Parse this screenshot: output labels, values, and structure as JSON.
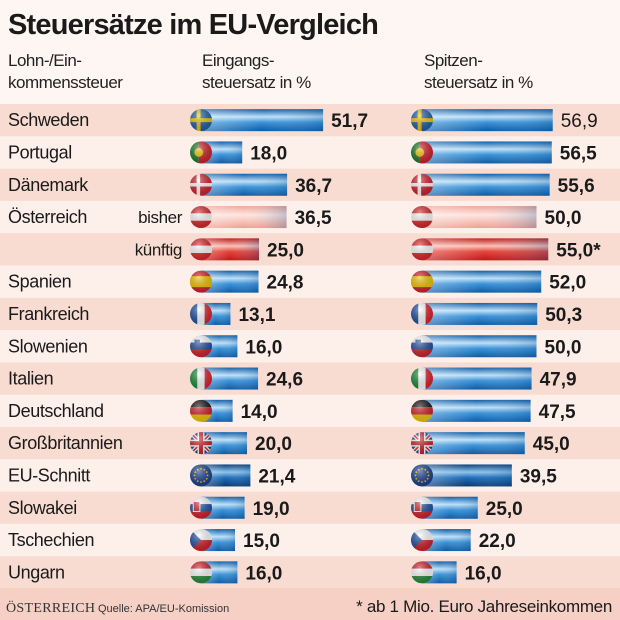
{
  "chart_data": {
    "type": "bar",
    "orientation": "horizontal",
    "title": "Steuersätze im EU-Vergleich",
    "category_header": "Lohn-/Einkommenssteuer",
    "category_header_lines": [
      "Lohn-/Ein-",
      "kommenssteuer"
    ],
    "series": [
      {
        "name": "Eingangssteuersatz in %",
        "name_lines": [
          "Eingangs-",
          "steuersatz in %"
        ],
        "color": "#1f78c8",
        "values": [
          51.7,
          18.0,
          36.7,
          36.5,
          25.0,
          24.8,
          13.1,
          16.0,
          24.6,
          14.0,
          20.0,
          21.4,
          19.0,
          15.0,
          16.0
        ],
        "labels": [
          "51,7",
          "18,0",
          "36,7",
          "36,5",
          "25,0",
          "24,8",
          "13,1",
          "16,0",
          "24,6",
          "14,0",
          "20,0",
          "21,4",
          "19,0",
          "15,0",
          "16,0"
        ]
      },
      {
        "name": "Spitzensteuersatz in %",
        "name_lines": [
          "Spitzen-",
          "steuersatz in %"
        ],
        "color": "#1f78c8",
        "values": [
          56.9,
          56.5,
          55.6,
          50.0,
          55.0,
          52.0,
          50.3,
          50.0,
          47.9,
          47.5,
          45.0,
          39.5,
          25.0,
          22.0,
          16.0
        ],
        "labels": [
          "56,9",
          "56,5",
          "55,6",
          "50,0",
          "55,0*",
          "52,0",
          "50,3",
          "50,0",
          "47,9",
          "47,5",
          "45,0",
          "39,5",
          "25,0",
          "22,0",
          "16,0"
        ]
      }
    ],
    "categories": [
      {
        "country": "Schweden",
        "sub": "",
        "flag": "sweden-flag-icon",
        "style": "blue"
      },
      {
        "country": "Portugal",
        "sub": "",
        "flag": "portugal-flag-icon",
        "style": "blue"
      },
      {
        "country": "Dänemark",
        "sub": "",
        "flag": "denmark-flag-icon",
        "style": "blue"
      },
      {
        "country": "Österreich",
        "sub": "bisher",
        "flag": "austria-flag-icon",
        "style": "pale-red"
      },
      {
        "country": "",
        "sub": "künftig",
        "flag": "austria-flag-icon",
        "style": "red"
      },
      {
        "country": "Spanien",
        "sub": "",
        "flag": "spain-flag-icon",
        "style": "blue"
      },
      {
        "country": "Frankreich",
        "sub": "",
        "flag": "france-flag-icon",
        "style": "blue"
      },
      {
        "country": "Slowenien",
        "sub": "",
        "flag": "slovenia-flag-icon",
        "style": "blue"
      },
      {
        "country": "Italien",
        "sub": "",
        "flag": "italy-flag-icon",
        "style": "blue"
      },
      {
        "country": "Deutschland",
        "sub": "",
        "flag": "germany-flag-icon",
        "style": "blue"
      },
      {
        "country": "Großbritannien",
        "sub": "",
        "flag": "uk-flag-icon",
        "style": "blue"
      },
      {
        "country": "EU-Schnitt",
        "sub": "",
        "flag": "eu-flag-icon",
        "style": "dark-blue"
      },
      {
        "country": "Slowakei",
        "sub": "",
        "flag": "slovakia-flag-icon",
        "style": "blue"
      },
      {
        "country": "Tschechien",
        "sub": "",
        "flag": "czech-flag-icon",
        "style": "blue"
      },
      {
        "country": "Ungarn",
        "sub": "",
        "flag": "hungary-flag-icon",
        "style": "blue"
      }
    ],
    "xlim": [
      0,
      60
    ],
    "grid": false,
    "legend": "none"
  },
  "footer": {
    "brand": "ÖSTERREICH",
    "source": "Quelle: APA/EU-Komission",
    "note": "* ab 1 Mio. Euro Jahreseinkommen"
  },
  "colors": {
    "bar_blue": "#1f78c8",
    "bar_red": "#e0302a",
    "row_pink": "#f8d9cf",
    "row_light": "#fdf0ea"
  }
}
